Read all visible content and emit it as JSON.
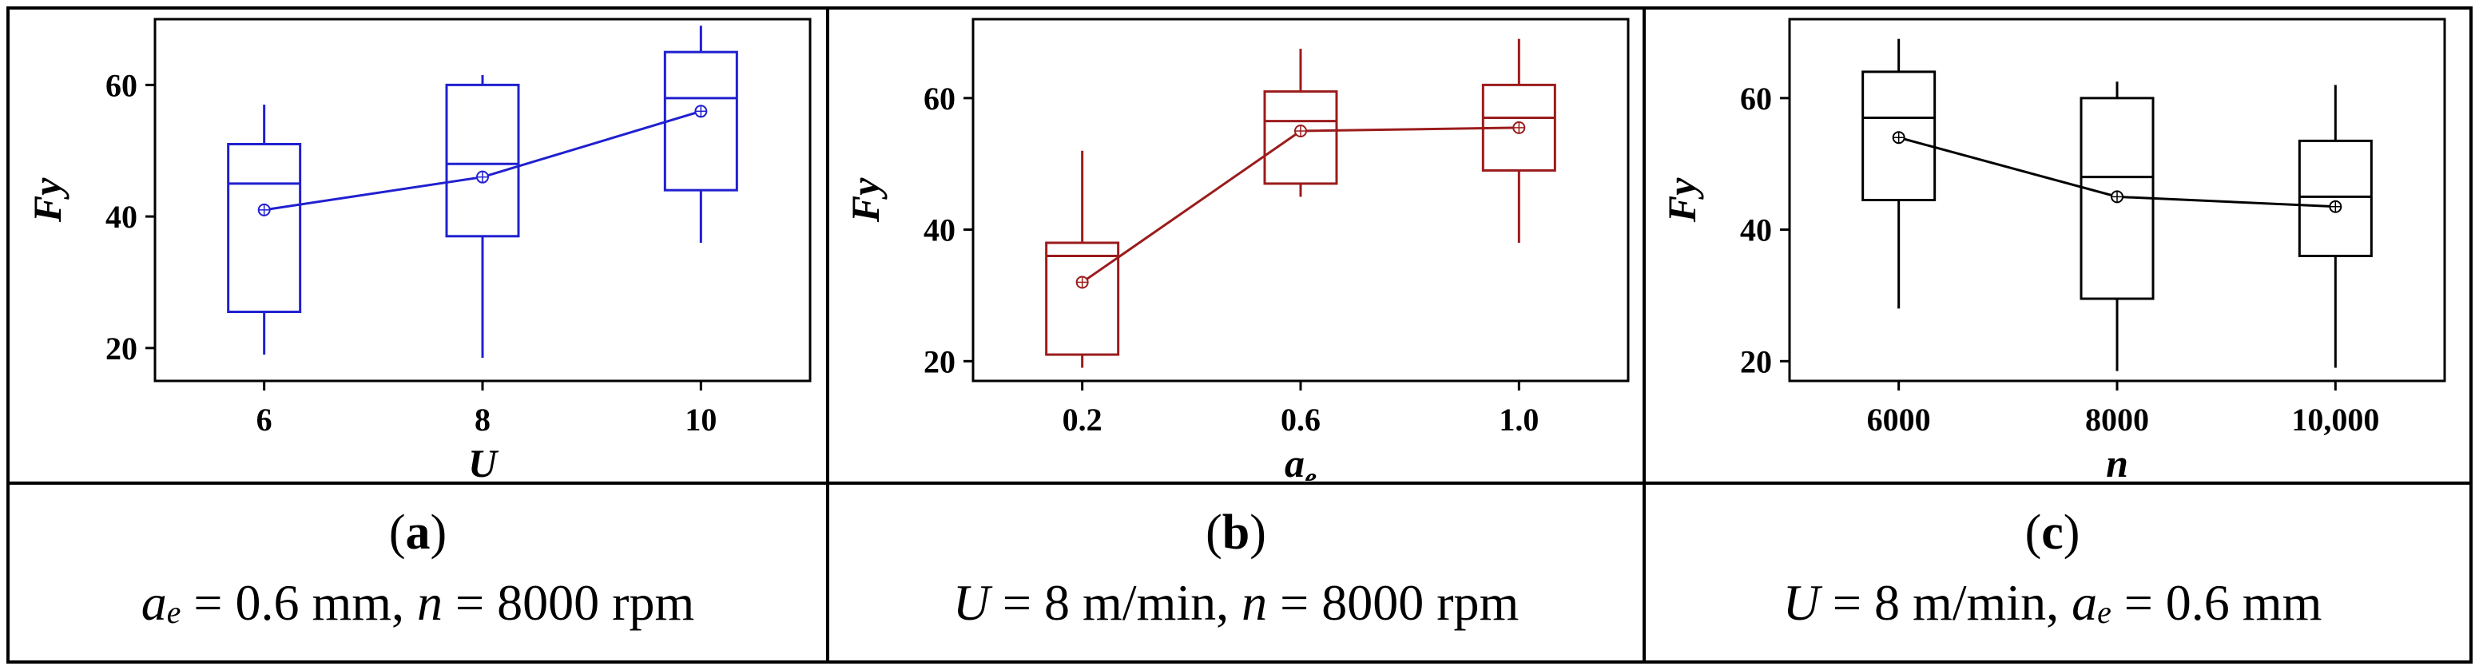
{
  "chart_data": [
    {
      "type": "boxplot",
      "color": "#2020d0",
      "ylabel": "Fy",
      "xlabel": "U",
      "xlabel_sub": "",
      "ylim": [
        15,
        70
      ],
      "yticks": [
        20,
        40,
        60
      ],
      "categories": [
        "6",
        "8",
        "10"
      ],
      "boxes": [
        {
          "min": 19,
          "q1": 25.5,
          "median": 45,
          "q3": 51,
          "max": 57,
          "mean": 41
        },
        {
          "min": 18.5,
          "q1": 37,
          "median": 48,
          "q3": 60,
          "max": 61.5,
          "mean": 46
        },
        {
          "min": 36,
          "q1": 44,
          "median": 58,
          "q3": 65,
          "max": 69,
          "mean": 56
        }
      ],
      "caption": {
        "letter": "a",
        "params": [
          {
            "sym": "a",
            "sub": "e",
            "text": " = 0.6 mm, "
          },
          {
            "sym": "n",
            "sub": "",
            "text": " = 8000 rpm"
          }
        ]
      }
    },
    {
      "type": "boxplot",
      "color": "#9b1c1c",
      "ylabel": "Fy",
      "xlabel": "a",
      "xlabel_sub": "e",
      "ylim": [
        17,
        72
      ],
      "yticks": [
        20,
        40,
        60
      ],
      "categories": [
        "0.2",
        "0.6",
        "1.0"
      ],
      "boxes": [
        {
          "min": 19,
          "q1": 21,
          "median": 36,
          "q3": 38,
          "max": 52,
          "mean": 32
        },
        {
          "min": 45,
          "q1": 47,
          "median": 56.5,
          "q3": 61,
          "max": 67.5,
          "mean": 55
        },
        {
          "min": 38,
          "q1": 49,
          "median": 57,
          "q3": 62,
          "max": 69,
          "mean": 55.5
        }
      ],
      "caption": {
        "letter": "b",
        "params": [
          {
            "sym": "U",
            "sub": "",
            "text": " = 8 m/min, "
          },
          {
            "sym": "n",
            "sub": "",
            "text": " = 8000 rpm"
          }
        ]
      }
    },
    {
      "type": "boxplot",
      "color": "#000000",
      "ylabel": "Fy",
      "xlabel": "n",
      "xlabel_sub": "",
      "ylim": [
        17,
        72
      ],
      "yticks": [
        20,
        40,
        60
      ],
      "categories": [
        "6000",
        "8000",
        "10,000"
      ],
      "boxes": [
        {
          "min": 28,
          "q1": 44.5,
          "median": 57,
          "q3": 64,
          "max": 69,
          "mean": 54
        },
        {
          "min": 18.5,
          "q1": 29.5,
          "median": 48,
          "q3": 60,
          "max": 62.5,
          "mean": 45
        },
        {
          "min": 19,
          "q1": 36,
          "median": 45,
          "q3": 53.5,
          "max": 62,
          "mean": 43.5
        }
      ],
      "caption": {
        "letter": "c",
        "params": [
          {
            "sym": "U",
            "sub": "",
            "text": " = 8 m/min, "
          },
          {
            "sym": "a",
            "sub": "e",
            "text": " = 0.6 mm"
          }
        ]
      }
    }
  ]
}
